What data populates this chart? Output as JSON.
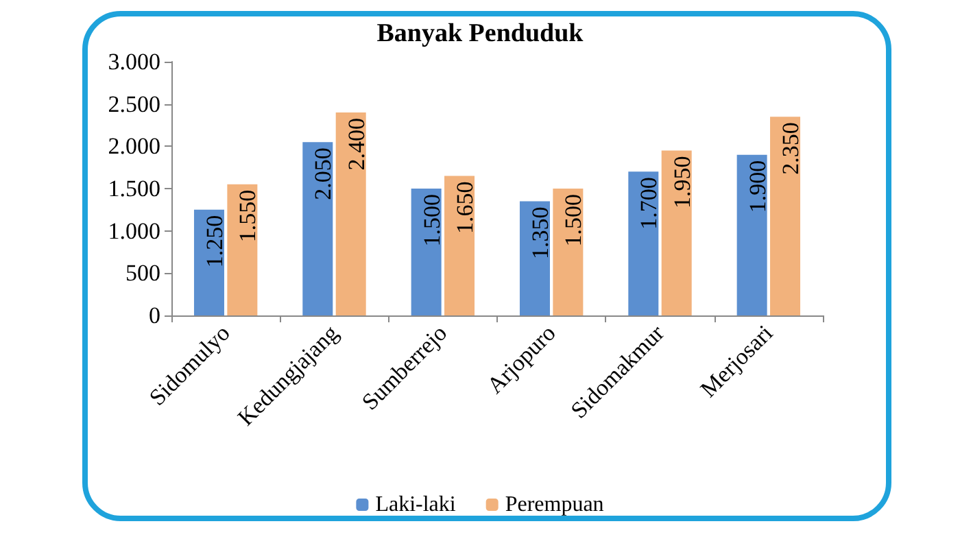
{
  "chart_data": {
    "type": "bar",
    "title": "Banyak Penduduk",
    "categories": [
      "Sidomulyo",
      "Kedungjajang",
      "Sumberrejo",
      "Arjopuro",
      "Sidomakmur",
      "Merjosari"
    ],
    "series": [
      {
        "name": "Laki-laki",
        "color": "#5b8fd0",
        "values": [
          1250,
          2050,
          1500,
          1350,
          1700,
          1900
        ],
        "value_labels": [
          "1.250",
          "2.050",
          "1.500",
          "1.350",
          "1.700",
          "1.900"
        ]
      },
      {
        "name": "Perempuan",
        "color": "#f2b27c",
        "values": [
          1550,
          2400,
          1650,
          1500,
          1950,
          2350
        ],
        "value_labels": [
          "1.550",
          "2.400",
          "1.650",
          "1.500",
          "1.950",
          "2.350"
        ]
      }
    ],
    "ylim": [
      0,
      3000
    ],
    "yticks": [
      {
        "value": 0,
        "label": "0"
      },
      {
        "value": 500,
        "label": "500"
      },
      {
        "value": 1000,
        "label": "1.000"
      },
      {
        "value": 1500,
        "label": "1.500"
      },
      {
        "value": 2000,
        "label": "2.000"
      },
      {
        "value": 2500,
        "label": "2.500"
      },
      {
        "value": 3000,
        "label": "3.000"
      }
    ],
    "grid": false,
    "legend": "bottom"
  }
}
